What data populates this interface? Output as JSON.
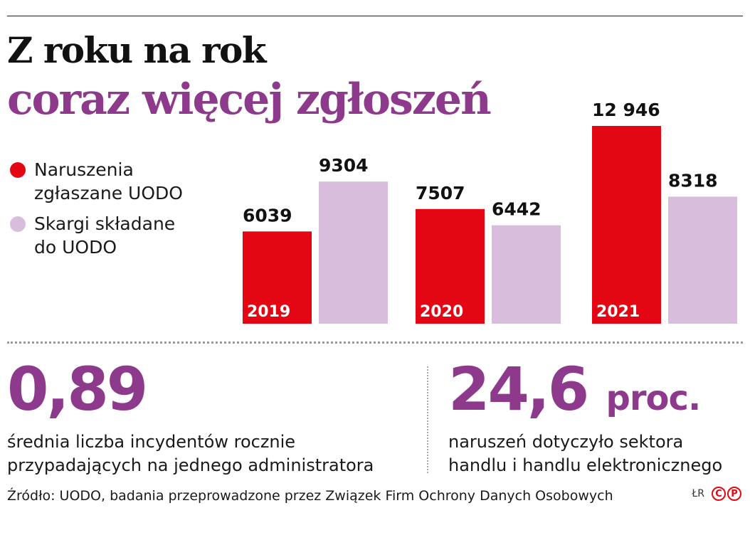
{
  "title": {
    "line1": "Z roku na rok",
    "line2": "coraz więcej zgłoszeń"
  },
  "colors": {
    "breaches": "#e30613",
    "complaints": "#d9bddc",
    "accent": "#8e3a8c"
  },
  "legend": [
    {
      "label_line1": "Naruszenia",
      "label_line2": "zgłaszane UODO",
      "color": "#e30613"
    },
    {
      "label_line1": "Skargi składane",
      "label_line2": "do UODO",
      "color": "#d9bddc"
    }
  ],
  "chart_data": {
    "type": "bar",
    "categories": [
      "2019",
      "2020",
      "2021"
    ],
    "series": [
      {
        "name": "Naruszenia zgłaszane UODO",
        "values": [
          6039,
          7507,
          12946
        ],
        "labels": [
          "6039",
          "7507",
          "12 946"
        ],
        "color": "#e30613"
      },
      {
        "name": "Skargi składane do UODO",
        "values": [
          9304,
          6442,
          8318
        ],
        "labels": [
          "9304",
          "6442",
          "8318"
        ],
        "color": "#d9bddc"
      }
    ],
    "title": "Z roku na rok coraz więcej zgłoszeń",
    "xlabel": "",
    "ylabel": "",
    "ylim": [
      0,
      12946
    ],
    "grid": false,
    "legend_position": "left"
  },
  "stats": [
    {
      "value": "0,89",
      "unit": "",
      "desc_line1": "średnia liczba incydentów rocznie",
      "desc_line2": "przypadających na jednego administratora"
    },
    {
      "value": "24,6",
      "unit": "proc.",
      "desc_line1": "naruszeń dotyczyło sektora",
      "desc_line2": "handlu i handlu elektronicznego"
    }
  ],
  "source": "Źródło: UODO, badania przeprowadzone przez Związek Firm Ochrony Danych Osobowych",
  "credits": {
    "initials": "ŁR",
    "logo_letters": [
      "C",
      "P"
    ],
    "logo_icon": "cp-logo-icon"
  }
}
